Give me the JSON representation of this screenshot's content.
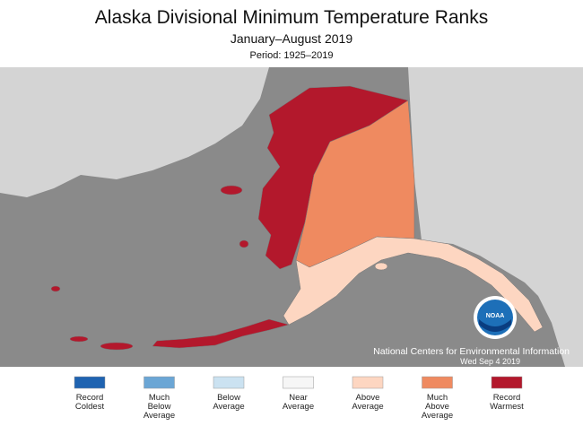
{
  "title": "Alaska Divisional Minimum Temperature Ranks",
  "subtitle": "January–August 2019",
  "period": "Period: 1925–2019",
  "credit": {
    "org": "National Centers for Environmental Information",
    "date": "Wed Sep  4 2019",
    "logo": "NOAA"
  },
  "legend": [
    {
      "lines": [
        "Record",
        "Coldest"
      ],
      "color": "#1f63b1"
    },
    {
      "lines": [
        "Much",
        "Below",
        "Average"
      ],
      "color": "#6ba6d5"
    },
    {
      "lines": [
        "Below",
        "Average"
      ],
      "color": "#cbe2f1"
    },
    {
      "lines": [
        "Near",
        "Average"
      ],
      "color": "#f6f6f6"
    },
    {
      "lines": [
        "Above",
        "Average"
      ],
      "color": "#fdd6c1"
    },
    {
      "lines": [
        "Much",
        "Above",
        "Average"
      ],
      "color": "#ef8a60"
    },
    {
      "lines": [
        "Record",
        "Warmest"
      ],
      "color": "#b3182c"
    }
  ]
}
